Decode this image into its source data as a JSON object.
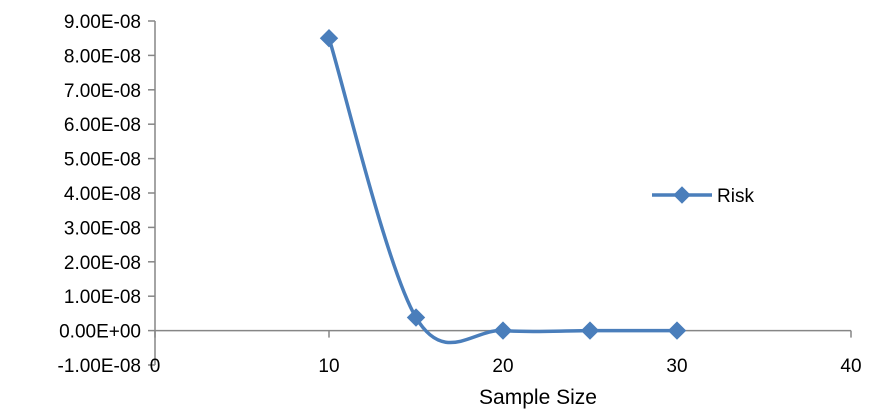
{
  "chart_data": {
    "type": "line",
    "title": "",
    "xlabel": "Sample Size",
    "ylabel": "",
    "xlim": [
      0,
      40
    ],
    "ylim": [
      -1e-08,
      9e-08
    ],
    "x_ticks": [
      "0",
      "10",
      "20",
      "30",
      "40"
    ],
    "y_ticks": [
      "9.00E-08",
      "8.00E-08",
      "7.00E-08",
      "6.00E-08",
      "5.00E-08",
      "4.00E-08",
      "3.00E-08",
      "2.00E-08",
      "1.00E-08",
      "0.00E+00",
      "-1.00E-08"
    ],
    "x_tick_values": [
      0,
      10,
      20,
      30,
      40
    ],
    "y_tick_values": [
      9e-08,
      8e-08,
      7e-08,
      6e-08,
      5e-08,
      4e-08,
      3e-08,
      2e-08,
      1e-08,
      0,
      -1e-08
    ],
    "grid": false,
    "smooth": true,
    "legend_position": "right",
    "series": [
      {
        "name": "Risk",
        "color": "#4a7ebb",
        "marker": "diamond",
        "x": [
          10,
          15,
          20,
          25,
          30
        ],
        "values": [
          8.5e-08,
          3.8e-09,
          0,
          0,
          0
        ]
      }
    ]
  }
}
